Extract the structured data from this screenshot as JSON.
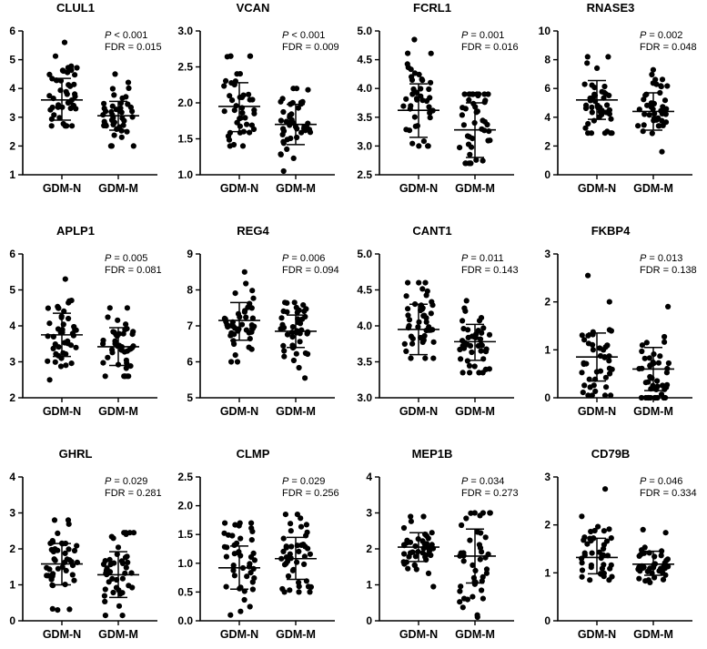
{
  "chart_data": [
    {
      "type": "scatter",
      "title": "CLUL1",
      "ylim": [
        1,
        6
      ],
      "yticks": [
        "1",
        "2",
        "3",
        "4",
        "5",
        "6"
      ],
      "categories": [
        "GDM-N",
        "GDM-M"
      ],
      "p_label": "P",
      "p_text": " < 0.001",
      "fdr_text": "FDR = 0.015",
      "series": [
        {
          "name": "GDM-N",
          "mean": 3.6,
          "sd_low": 2.9,
          "sd_high": 4.35,
          "min": 2.7,
          "max": 5.6
        },
        {
          "name": "GDM-M",
          "mean": 3.05,
          "sd_low": 2.55,
          "sd_high": 3.55,
          "min": 2.0,
          "max": 4.5
        }
      ]
    },
    {
      "type": "scatter",
      "title": "VCAN",
      "ylim": [
        1.0,
        3.0
      ],
      "yticks": [
        "1.0",
        "1.5",
        "2.0",
        "2.5",
        "3.0"
      ],
      "categories": [
        "GDM-N",
        "GDM-M"
      ],
      "p_label": "P",
      "p_text": " < 0.001",
      "fdr_text": "FDR = 0.009",
      "series": [
        {
          "name": "GDM-N",
          "mean": 1.95,
          "sd_low": 1.6,
          "sd_high": 2.28,
          "min": 1.4,
          "max": 2.65
        },
        {
          "name": "GDM-M",
          "mean": 1.7,
          "sd_low": 1.42,
          "sd_high": 1.98,
          "min": 1.05,
          "max": 2.2
        }
      ]
    },
    {
      "type": "scatter",
      "title": "FCRL1",
      "ylim": [
        2.5,
        5.0
      ],
      "yticks": [
        "2.5",
        "3.0",
        "3.5",
        "4.0",
        "4.5",
        "5.0"
      ],
      "categories": [
        "GDM-N",
        "GDM-M"
      ],
      "p_label": "P",
      "p_text": " = 0.001",
      "fdr_text": "FDR = 0.016",
      "series": [
        {
          "name": "GDM-N",
          "mean": 3.62,
          "sd_low": 3.15,
          "sd_high": 4.08,
          "min": 3.0,
          "max": 4.85
        },
        {
          "name": "GDM-M",
          "mean": 3.28,
          "sd_low": 2.8,
          "sd_high": 3.75,
          "min": 2.7,
          "max": 3.9
        }
      ]
    },
    {
      "type": "scatter",
      "title": "RNASE3",
      "ylim": [
        0,
        10
      ],
      "yticks": [
        "0",
        "2",
        "4",
        "6",
        "8",
        "10"
      ],
      "categories": [
        "GDM-N",
        "GDM-M"
      ],
      "p_label": "P",
      "p_text": " = 0.002",
      "fdr_text": "FDR = 0.048",
      "series": [
        {
          "name": "GDM-N",
          "mean": 5.2,
          "sd_low": 3.85,
          "sd_high": 6.55,
          "min": 2.9,
          "max": 8.2
        },
        {
          "name": "GDM-M",
          "mean": 4.4,
          "sd_low": 3.1,
          "sd_high": 5.7,
          "min": 1.6,
          "max": 7.3
        }
      ]
    },
    {
      "type": "scatter",
      "title": "APLP1",
      "ylim": [
        2,
        6
      ],
      "yticks": [
        "2",
        "3",
        "4",
        "5",
        "6"
      ],
      "categories": [
        "GDM-N",
        "GDM-M"
      ],
      "p_label": "P",
      "p_text": " = 0.005",
      "fdr_text": "FDR = 0.081",
      "series": [
        {
          "name": "GDM-N",
          "mean": 3.75,
          "sd_low": 3.15,
          "sd_high": 4.35,
          "min": 2.5,
          "max": 5.3
        },
        {
          "name": "GDM-M",
          "mean": 3.42,
          "sd_low": 2.9,
          "sd_high": 3.95,
          "min": 2.6,
          "max": 4.5
        }
      ]
    },
    {
      "type": "scatter",
      "title": "REG4",
      "ylim": [
        5,
        9
      ],
      "yticks": [
        "5",
        "6",
        "7",
        "8",
        "9"
      ],
      "categories": [
        "GDM-N",
        "GDM-M"
      ],
      "p_label": "P",
      "p_text": " = 0.006",
      "fdr_text": "FDR = 0.094",
      "series": [
        {
          "name": "GDM-N",
          "mean": 7.15,
          "sd_low": 6.6,
          "sd_high": 7.65,
          "min": 6.0,
          "max": 8.5
        },
        {
          "name": "GDM-M",
          "mean": 6.85,
          "sd_low": 6.4,
          "sd_high": 7.3,
          "min": 5.55,
          "max": 7.65
        }
      ]
    },
    {
      "type": "scatter",
      "title": "CANT1",
      "ylim": [
        3.0,
        5.0
      ],
      "yticks": [
        "3.0",
        "3.5",
        "4.0",
        "4.5",
        "5.0"
      ],
      "categories": [
        "GDM-N",
        "GDM-M"
      ],
      "p_label": "P",
      "p_text": " = 0.011",
      "fdr_text": "FDR = 0.143",
      "series": [
        {
          "name": "GDM-N",
          "mean": 3.95,
          "sd_low": 3.6,
          "sd_high": 4.3,
          "min": 3.55,
          "max": 4.6
        },
        {
          "name": "GDM-M",
          "mean": 3.78,
          "sd_low": 3.52,
          "sd_high": 4.02,
          "min": 3.35,
          "max": 4.35
        }
      ]
    },
    {
      "type": "scatter",
      "title": "FKBP4",
      "ylim": [
        0,
        3
      ],
      "yticks": [
        "0",
        "1",
        "2",
        "3"
      ],
      "categories": [
        "GDM-N",
        "GDM-M"
      ],
      "p_label": "P",
      "p_text": " = 0.013",
      "fdr_text": "FDR = 0.138",
      "series": [
        {
          "name": "GDM-N",
          "mean": 0.85,
          "sd_low": 0.35,
          "sd_high": 1.35,
          "min": 0.05,
          "max": 2.55
        },
        {
          "name": "GDM-M",
          "mean": 0.6,
          "sd_low": 0.15,
          "sd_high": 1.05,
          "min": 0.0,
          "max": 1.9
        }
      ]
    },
    {
      "type": "scatter",
      "title": "GHRL",
      "ylim": [
        0,
        4
      ],
      "yticks": [
        "0",
        "1",
        "2",
        "3",
        "4"
      ],
      "categories": [
        "GDM-N",
        "GDM-M"
      ],
      "p_label": "P",
      "p_text": " = 0.029",
      "fdr_text": "FDR = 0.281",
      "series": [
        {
          "name": "GDM-N",
          "mean": 1.58,
          "sd_low": 1.0,
          "sd_high": 2.15,
          "min": 0.3,
          "max": 2.8
        },
        {
          "name": "GDM-M",
          "mean": 1.28,
          "sd_low": 0.65,
          "sd_high": 1.92,
          "min": 0.15,
          "max": 2.45
        }
      ]
    },
    {
      "type": "scatter",
      "title": "CLMP",
      "ylim": [
        0.0,
        2.5
      ],
      "yticks": [
        "0.0",
        "0.5",
        "1.0",
        "1.5",
        "2.0",
        "2.5"
      ],
      "categories": [
        "GDM-N",
        "GDM-M"
      ],
      "p_label": "P",
      "p_text": " = 0.029",
      "fdr_text": "FDR = 0.256",
      "series": [
        {
          "name": "GDM-N",
          "mean": 0.92,
          "sd_low": 0.55,
          "sd_high": 1.3,
          "min": 0.1,
          "max": 1.7
        },
        {
          "name": "GDM-M",
          "mean": 1.08,
          "sd_low": 0.72,
          "sd_high": 1.45,
          "min": 0.5,
          "max": 1.85
        }
      ]
    },
    {
      "type": "scatter",
      "title": "MEP1B",
      "ylim": [
        0,
        4
      ],
      "yticks": [
        "0",
        "1",
        "2",
        "3",
        "4"
      ],
      "categories": [
        "GDM-N",
        "GDM-M"
      ],
      "p_label": "P",
      "p_text": " = 0.034",
      "fdr_text": "FDR = 0.273",
      "series": [
        {
          "name": "GDM-N",
          "mean": 2.05,
          "sd_low": 1.65,
          "sd_high": 2.45,
          "min": 0.95,
          "max": 2.9
        },
        {
          "name": "GDM-M",
          "mean": 1.8,
          "sd_low": 1.05,
          "sd_high": 2.55,
          "min": 0.1,
          "max": 3.0
        }
      ]
    },
    {
      "type": "scatter",
      "title": "CD79B",
      "ylim": [
        0,
        3
      ],
      "yticks": [
        "0",
        "1",
        "2",
        "3"
      ],
      "categories": [
        "GDM-N",
        "GDM-M"
      ],
      "p_label": "P",
      "p_text": " = 0.046",
      "fdr_text": "FDR = 0.334",
      "series": [
        {
          "name": "GDM-N",
          "mean": 1.32,
          "sd_low": 0.98,
          "sd_high": 1.72,
          "min": 0.85,
          "max": 2.75
        },
        {
          "name": "GDM-M",
          "mean": 1.18,
          "sd_low": 0.95,
          "sd_high": 1.45,
          "min": 0.8,
          "max": 1.9
        }
      ]
    }
  ]
}
